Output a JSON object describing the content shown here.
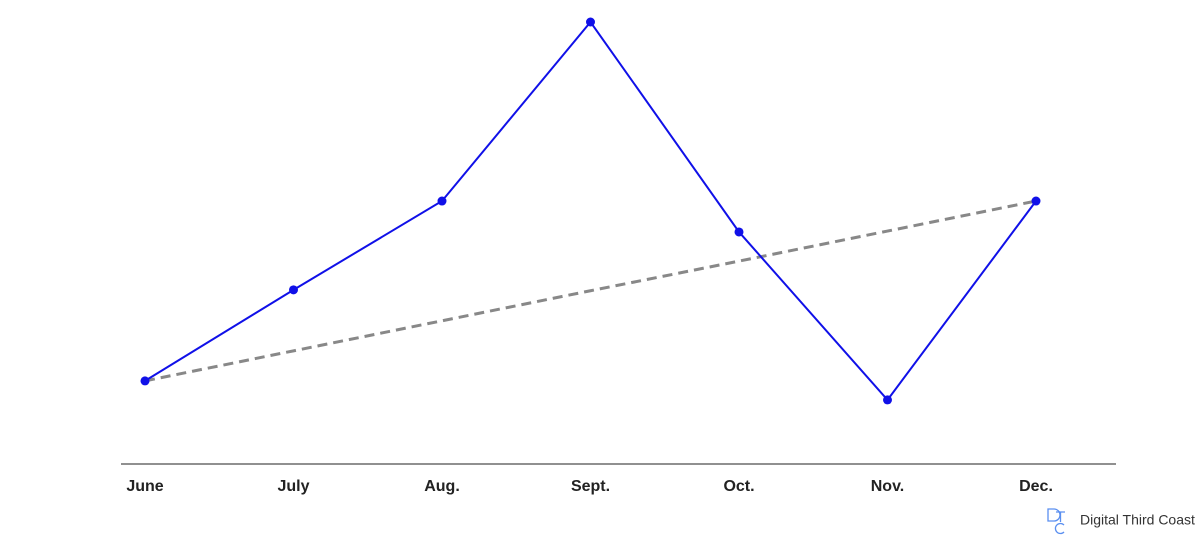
{
  "chart_data": {
    "type": "line",
    "categories": [
      "June",
      "July",
      "Aug.",
      "Sept.",
      "Oct.",
      "Nov.",
      "Dec."
    ],
    "series": [
      {
        "color": "#1010e8",
        "values": [
          18.8,
          39.4,
          59.5,
          100,
          52.5,
          14.5,
          59.5
        ],
        "markers": true,
        "dashed": false
      },
      {
        "color": "#888888",
        "values": [
          18.8,
          25.6,
          32.4,
          39.2,
          45.9,
          52.7,
          59.5
        ],
        "markers": false,
        "dashed": true
      }
    ],
    "ylim": [
      0,
      100
    ]
  },
  "brand": "Digital Third Coast"
}
